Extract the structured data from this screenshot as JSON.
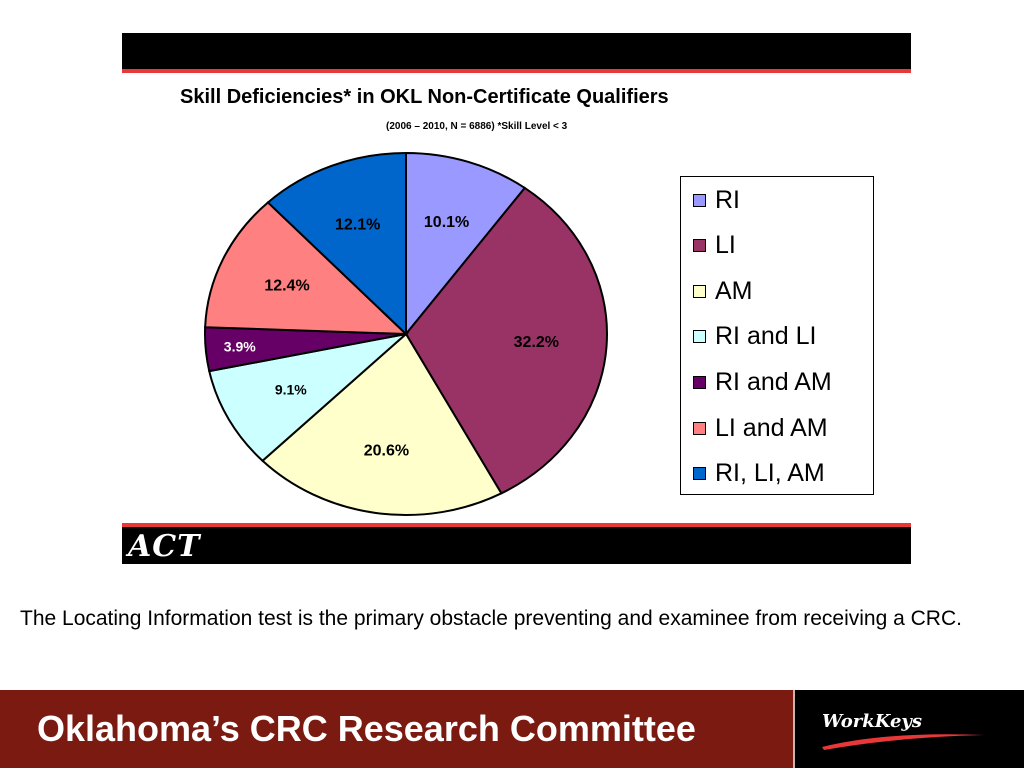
{
  "chart_data": {
    "type": "pie",
    "title": "Skill Deficiencies* in OKL Non-Certificate Qualifiers",
    "subtitle": "(2006 – 2010, N = 6886) *Skill Level < 3",
    "categories": [
      "RI",
      "LI",
      "AM",
      "RI and LI",
      "RI and AM",
      "LI and AM",
      "RI, LI, AM"
    ],
    "values": [
      10.1,
      32.2,
      20.6,
      9.1,
      3.9,
      12.4,
      12.1
    ],
    "data_labels": [
      "10.1%",
      "32.2%",
      "20.6%",
      "9.1%",
      "3.9%",
      "12.4%",
      "12.1%"
    ],
    "colors": [
      "#9999ff",
      "#993366",
      "#ffffcc",
      "#ccffff",
      "#660066",
      "#ff8080",
      "#0066cc"
    ],
    "label_colors": [
      "#000000",
      "#000000",
      "#000000",
      "#000000",
      "#ffffff",
      "#000000",
      "#000000"
    ],
    "legend_position": "right"
  },
  "brand": {
    "act_logo_text": "ACT",
    "workkeys_logo_text": "WorkKeys"
  },
  "caption": "The Locating Information test is the primary obstacle preventing and examinee from receiving a CRC.",
  "footer": {
    "title": "Oklahoma’s CRC Research Committee"
  }
}
